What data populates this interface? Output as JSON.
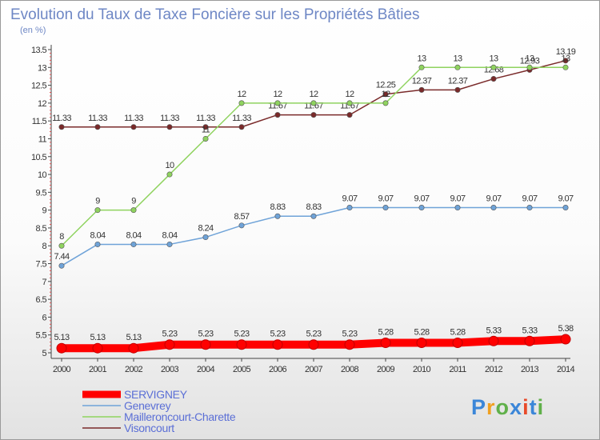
{
  "chart_data": {
    "type": "line",
    "title": "Evolution du Taux de Taxe Foncière sur les Propriétés Bâties",
    "subtitle": "(en %)",
    "x": [
      "2000",
      "2001",
      "2002",
      "2003",
      "2004",
      "2005",
      "2006",
      "2007",
      "2008",
      "2009",
      "2010",
      "2011",
      "2012",
      "2013",
      "2014"
    ],
    "ylim": [
      5,
      13.5
    ],
    "yticks": [
      "5",
      "5.5",
      "6",
      "6.5",
      "7",
      "7.5",
      "8",
      "8.5",
      "9",
      "9.5",
      "10",
      "10.5",
      "11",
      "11.5",
      "12",
      "12.5",
      "13",
      "13.5"
    ],
    "grid": false,
    "legend_position": "bottom-left",
    "series": [
      {
        "name": "SERVIGNEY",
        "color": "#ff0000",
        "values": [
          5.13,
          5.13,
          5.13,
          5.23,
          5.23,
          5.23,
          5.23,
          5.23,
          5.23,
          5.28,
          5.28,
          5.28,
          5.33,
          5.33,
          5.38
        ],
        "labels": [
          "5.13",
          "5.13",
          "5.13",
          "5.23",
          "5.23",
          "5.23",
          "5.23",
          "5.23",
          "5.23",
          "5.28",
          "5.28",
          "5.28",
          "5.33",
          "5.33",
          "5.38"
        ]
      },
      {
        "name": "Genevrey",
        "color": "#6fa3d8",
        "values": [
          7.44,
          8.04,
          8.04,
          8.04,
          8.24,
          8.57,
          8.83,
          8.83,
          9.07,
          9.07,
          9.07,
          9.07,
          9.07,
          9.07,
          9.07
        ],
        "labels": [
          "7.44",
          "8.04",
          "8.04",
          "8.04",
          "8.24",
          "8.57",
          "8.83",
          "8.83",
          "9.07",
          "9.07",
          "9.07",
          "9.07",
          "9.07",
          "9.07",
          "9.07"
        ]
      },
      {
        "name": "Mailleroncourt-Charette",
        "color": "#8fd35f",
        "values": [
          8,
          9,
          9,
          10,
          11,
          12,
          12,
          12,
          12,
          12,
          13,
          13,
          13,
          13,
          13
        ],
        "labels": [
          "8",
          "9",
          "9",
          "10",
          "11",
          "12",
          "12",
          "12",
          "12",
          "12",
          "13",
          "13",
          "13",
          "13",
          "13"
        ]
      },
      {
        "name": "Visoncourt",
        "color": "#7a2a2a",
        "values": [
          11.33,
          11.33,
          11.33,
          11.33,
          11.33,
          11.33,
          11.67,
          11.67,
          11.67,
          12.25,
          12.37,
          12.37,
          12.68,
          12.93,
          13.19
        ],
        "labels": [
          "11.33",
          "11.33",
          "11.33",
          "11.33",
          "11.33",
          "11.33",
          "11.67",
          "11.67",
          "11.67",
          "12.25",
          "12.37",
          "12.37",
          "12.68",
          "12.93",
          "13.19"
        ]
      }
    ]
  },
  "logo": {
    "text": "Proxiti",
    "colors": [
      "#3b86d8",
      "#f0a020",
      "#60b04a",
      "#3b86d8",
      "#e84a2a",
      "#3b86d8",
      "#60b04a"
    ]
  }
}
